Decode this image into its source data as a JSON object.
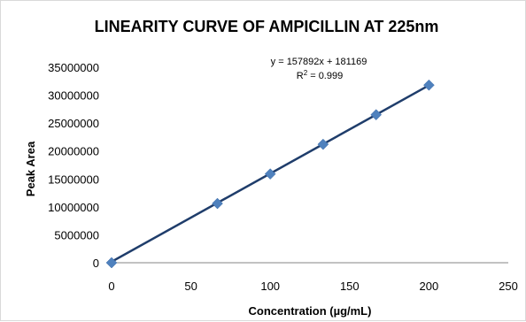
{
  "chart_data": {
    "type": "scatter",
    "title": "LINEARITY CURVE OF AMPICILLIN AT 225nm",
    "xlabel": "Concentration (µg/mL)",
    "ylabel": "Peak Area",
    "xlim": [
      0,
      250
    ],
    "ylim": [
      0,
      35000000
    ],
    "xticks": [
      "0",
      "50",
      "100",
      "150",
      "200",
      "250"
    ],
    "yticks": [
      "0",
      "5000000",
      "10000000",
      "15000000",
      "20000000",
      "25000000",
      "30000000",
      "35000000"
    ],
    "grid": false,
    "series": [
      {
        "x": [
          0,
          66.7,
          100,
          133.3,
          166.7,
          200
        ],
        "y": [
          0,
          10600000,
          15900000,
          21200000,
          26500000,
          31800000
        ],
        "marker": "diamond",
        "color": "#4f81bd"
      }
    ],
    "trendline": {
      "slope": 157892,
      "intercept": 181169,
      "color": "#1f3d6b",
      "equation_text": "y = 157892x + 181169",
      "r2_text_prefix": "R",
      "r2_text_sup": "2",
      "r2_text_suffix": " = 0.999"
    }
  }
}
